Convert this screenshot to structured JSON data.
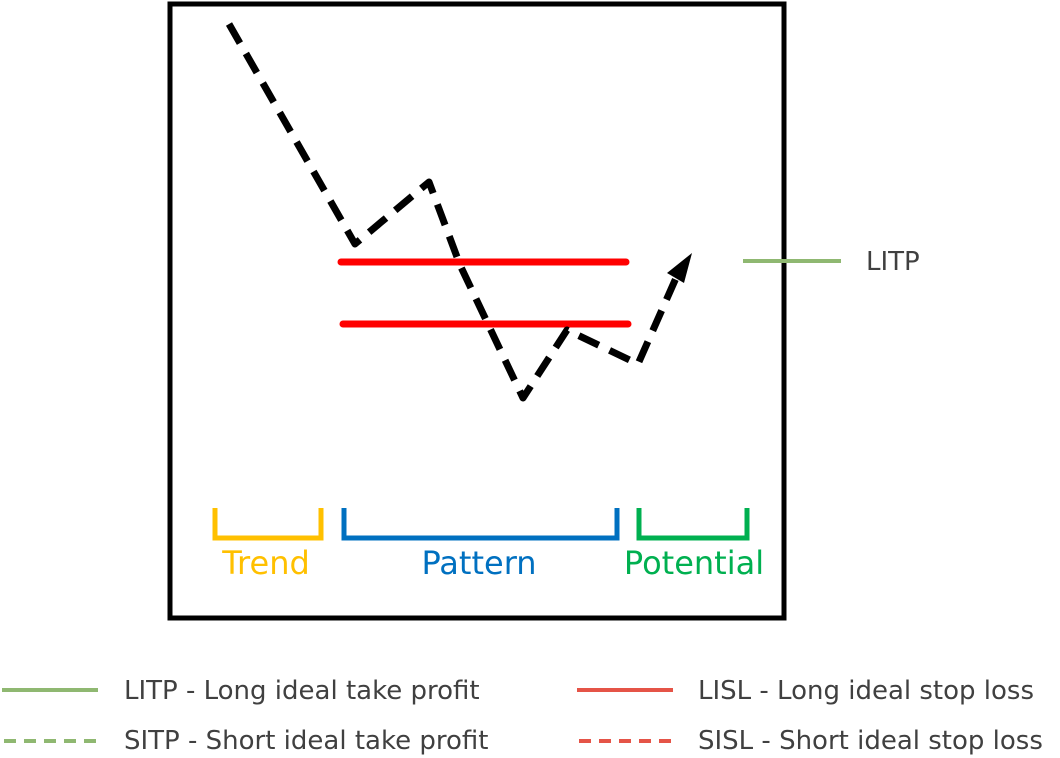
{
  "colors": {
    "frame": "#000000",
    "price_path": "#000000",
    "stop_loss_line": "#ff0000",
    "take_profit": "#8fb871",
    "stop_loss_legend": "#e55447",
    "trend": "#ffc000",
    "pattern": "#0070c0",
    "potential": "#00b050",
    "text": "#404040"
  },
  "diagram": {
    "tp_marker_label": "LITP",
    "phases": [
      {
        "key": "trend",
        "label": "Trend"
      },
      {
        "key": "pattern",
        "label": "Pattern"
      },
      {
        "key": "potential",
        "label": "Potential"
      }
    ]
  },
  "legend": {
    "items": [
      {
        "key": "litp",
        "label": "LITP - Long ideal take profit",
        "line_style": "solid",
        "color_key": "take_profit"
      },
      {
        "key": "lisl",
        "label": "LISL - Long ideal stop loss",
        "line_style": "solid",
        "color_key": "stop_loss_legend"
      },
      {
        "key": "sitp",
        "label": "SITP - Short ideal take profit",
        "line_style": "dashed",
        "color_key": "take_profit"
      },
      {
        "key": "sisl",
        "label": "SISL - Short ideal stop loss",
        "line_style": "dashed",
        "color_key": "stop_loss_legend"
      }
    ]
  }
}
